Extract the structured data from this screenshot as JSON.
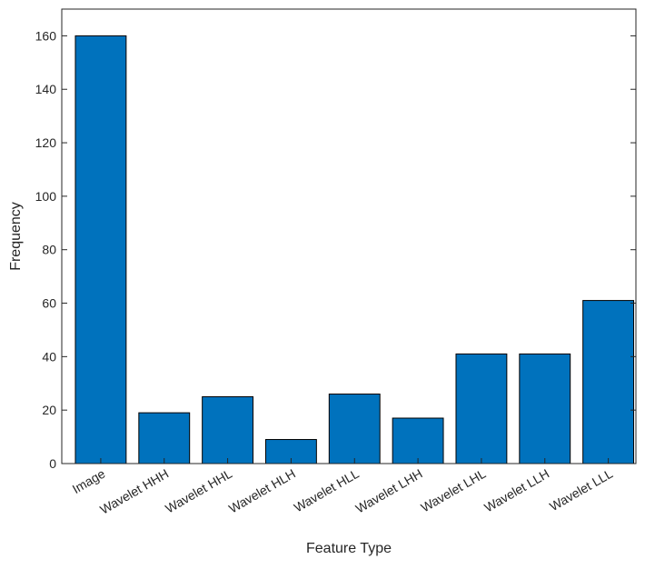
{
  "chart_data": {
    "type": "bar",
    "categories": [
      "Image",
      "Wavelet HHH",
      "Wavelet HHL",
      "Wavelet HLH",
      "Wavelet HLL",
      "Wavelet LHH",
      "Wavelet LHL",
      "Wavelet LLH",
      "Wavelet LLL"
    ],
    "values": [
      160,
      19,
      25,
      9,
      26,
      17,
      41,
      41,
      61
    ],
    "title": "",
    "xlabel": "Feature Type",
    "ylabel": "Frequency",
    "ylim": [
      0,
      170
    ],
    "yticks": [
      0,
      20,
      40,
      60,
      80,
      100,
      120,
      140,
      160
    ],
    "grid": false,
    "bar_color": "#0072BD",
    "edge_color": "#000000"
  }
}
